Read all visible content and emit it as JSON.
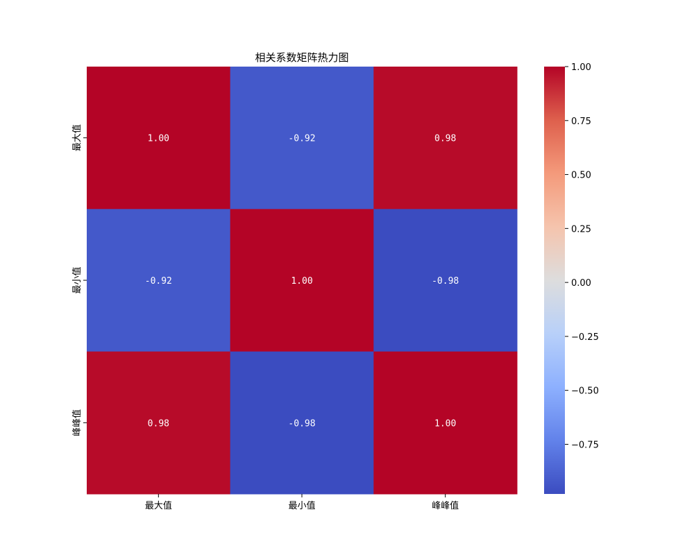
{
  "chart_data": {
    "type": "heatmap",
    "title": "相关系数矩阵热力图",
    "xlabel": "",
    "ylabel": "",
    "x_categories": [
      "最大值",
      "最小值",
      "峰峰值"
    ],
    "y_categories": [
      "最大值",
      "最小值",
      "峰峰值"
    ],
    "values": [
      [
        1.0,
        -0.92,
        0.98
      ],
      [
        -0.92,
        1.0,
        -0.98
      ],
      [
        0.98,
        -0.98,
        1.0
      ]
    ],
    "cell_labels": [
      [
        "1.00",
        "-0.92",
        "0.98"
      ],
      [
        "-0.92",
        "1.00",
        "-0.98"
      ],
      [
        "0.98",
        "-0.98",
        "1.00"
      ]
    ],
    "colormap": "coolwarm",
    "colorbar": {
      "range": [
        -0.98,
        1.0
      ],
      "ticks": [
        1.0,
        0.75,
        0.5,
        0.25,
        0.0,
        -0.25,
        -0.5,
        -0.75
      ],
      "tick_labels": [
        "1.00",
        "0.75",
        "0.50",
        "0.25",
        "0.00",
        "−0.25",
        "−0.50",
        "−0.75"
      ]
    },
    "label_color": "#ffffff",
    "grid": false
  }
}
